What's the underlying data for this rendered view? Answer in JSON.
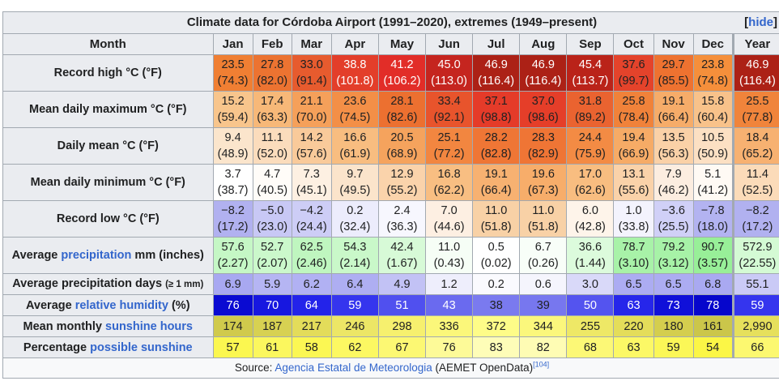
{
  "title": "Climate data for Córdoba Airport (1991–2020), extremes (1949–present)",
  "hide_label": "hide",
  "header": {
    "month_label": "Month",
    "months": [
      "Jan",
      "Feb",
      "Mar",
      "Apr",
      "May",
      "Jun",
      "Jul",
      "Aug",
      "Sep",
      "Oct",
      "Nov",
      "Dec"
    ],
    "year_label": "Year"
  },
  "rows": [
    {
      "id": "record-high",
      "label_parts": [
        {
          "text": "Record high °C (°F)",
          "link": false
        }
      ],
      "values": [
        "23.5",
        "27.8",
        "33.0",
        "38.8",
        "41.2",
        "45.0",
        "46.9",
        "46.9",
        "45.4",
        "37.6",
        "29.7",
        "23.8"
      ],
      "sub": [
        "(74.3)",
        "(82.0)",
        "(91.4)",
        "(101.8)",
        "(106.2)",
        "(113.0)",
        "(116.4)",
        "(116.4)",
        "(113.7)",
        "(99.7)",
        "(85.5)",
        "(74.8)"
      ],
      "year": "46.9",
      "year_sub": "(116.4)",
      "colors": [
        "#f07f33",
        "#ec7331",
        "#e75b2e",
        "#e33e2a",
        "#e22d28",
        "#c5251f",
        "#ac2116",
        "#ac2116",
        "#ba2319",
        "#e4432b",
        "#ee7230",
        "#f58f3b"
      ],
      "text_colors": [
        "#202122",
        "#202122",
        "#202122",
        "#ffffff",
        "#ffffff",
        "#ffffff",
        "#ffffff",
        "#ffffff",
        "#ffffff",
        "#202122",
        "#202122",
        "#202122"
      ],
      "year_color": "#ac2116",
      "year_text": "#ffffff"
    },
    {
      "id": "mean-max",
      "label_parts": [
        {
          "text": "Mean daily maximum °C (°F)",
          "link": false
        }
      ],
      "values": [
        "15.2",
        "17.4",
        "21.1",
        "23.6",
        "28.1",
        "33.4",
        "37.1",
        "37.0",
        "31.8",
        "25.8",
        "19.1",
        "15.8"
      ],
      "sub": [
        "(59.4)",
        "(63.3)",
        "(70.0)",
        "(74.5)",
        "(82.6)",
        "(92.1)",
        "(98.8)",
        "(98.6)",
        "(89.2)",
        "(78.4)",
        "(66.4)",
        "(60.4)"
      ],
      "year": "25.5",
      "year_sub": "(77.8)",
      "colors": [
        "#f8c58c",
        "#f7b878",
        "#f5a05a",
        "#f38f47",
        "#ec7030",
        "#e8542c",
        "#e53b29",
        "#e53e29",
        "#ea6330",
        "#f0823a",
        "#f6ac69",
        "#f8c28a"
      ],
      "text_colors": [
        "#202122",
        "#202122",
        "#202122",
        "#202122",
        "#202122",
        "#202122",
        "#202122",
        "#202122",
        "#202122",
        "#202122",
        "#202122",
        "#202122"
      ],
      "year_color": "#f0843b",
      "year_text": "#202122"
    },
    {
      "id": "daily-mean",
      "label_parts": [
        {
          "text": "Daily mean °C (°F)",
          "link": false
        }
      ],
      "values": [
        "9.4",
        "11.1",
        "14.2",
        "16.6",
        "20.5",
        "25.1",
        "28.2",
        "28.3",
        "24.4",
        "19.4",
        "13.5",
        "10.5"
      ],
      "sub": [
        "(48.9)",
        "(52.0)",
        "(57.6)",
        "(61.9)",
        "(68.9)",
        "(77.2)",
        "(82.8)",
        "(82.9)",
        "(75.9)",
        "(66.9)",
        "(56.3)",
        "(50.9)"
      ],
      "year": "18.4",
      "year_sub": "(65.2)",
      "colors": [
        "#fbe5cc",
        "#fbdcbc",
        "#f9ca9a",
        "#f8bd80",
        "#f5a35d",
        "#f28640",
        "#ef7635",
        "#ef7535",
        "#f38b44",
        "#f6ab66",
        "#fad1a7",
        "#fce0c3"
      ],
      "text_colors": [
        "#202122",
        "#202122",
        "#202122",
        "#202122",
        "#202122",
        "#202122",
        "#202122",
        "#202122",
        "#202122",
        "#202122",
        "#202122",
        "#202122"
      ],
      "year_color": "#f7b171",
      "year_text": "#202122"
    },
    {
      "id": "mean-min",
      "label_parts": [
        {
          "text": "Mean daily minimum °C (°F)",
          "link": false
        }
      ],
      "values": [
        "3.7",
        "4.7",
        "7.3",
        "9.7",
        "12.9",
        "16.8",
        "19.1",
        "19.6",
        "17.0",
        "13.1",
        "7.9",
        "5.1"
      ],
      "sub": [
        "(38.7)",
        "(40.5)",
        "(45.1)",
        "(49.5)",
        "(55.2)",
        "(62.2)",
        "(66.4)",
        "(67.3)",
        "(62.6)",
        "(55.6)",
        "(46.2)",
        "(41.2)"
      ],
      "year": "11.4",
      "year_sub": "(52.5)",
      "colors": [
        "#ffffff",
        "#fffcf8",
        "#fdf0e2",
        "#fbe4cb",
        "#fad3ab",
        "#f8be82",
        "#f7b171",
        "#f7ad6a",
        "#f8bd80",
        "#fad2a9",
        "#fcede0",
        "#fffaf4"
      ],
      "text_colors": [
        "#202122",
        "#202122",
        "#202122",
        "#202122",
        "#202122",
        "#202122",
        "#202122",
        "#202122",
        "#202122",
        "#202122",
        "#202122",
        "#202122"
      ],
      "year_color": "#fbdbb9",
      "year_text": "#202122"
    },
    {
      "id": "record-low",
      "label_parts": [
        {
          "text": "Record low °C (°F)",
          "link": false
        }
      ],
      "values": [
        "−8.2",
        "−5.0",
        "−4.2",
        "0.2",
        "2.4",
        "7.0",
        "11.0",
        "11.0",
        "6.0",
        "1.0",
        "−3.6",
        "−7.8"
      ],
      "sub": [
        "(17.2)",
        "(23.0)",
        "(24.4)",
        "(32.4)",
        "(36.3)",
        "(44.6)",
        "(51.8)",
        "(51.8)",
        "(42.8)",
        "(33.8)",
        "(25.5)",
        "(18.0)"
      ],
      "year": "−8.2",
      "year_sub": "(17.2)",
      "colors": [
        "#b1b1f0",
        "#c8c8f5",
        "#cdcdf6",
        "#ececfc",
        "#f7f7fe",
        "#fdefe2",
        "#f8d1a6",
        "#f8d1a6",
        "#fef4ea",
        "#f3f3fd",
        "#d0d0f7",
        "#b3b3f1"
      ],
      "text_colors": [
        "#202122",
        "#202122",
        "#202122",
        "#202122",
        "#202122",
        "#202122",
        "#202122",
        "#202122",
        "#202122",
        "#202122",
        "#202122",
        "#202122"
      ],
      "year_color": "#b1b1f0",
      "year_text": "#202122"
    },
    {
      "id": "precipitation",
      "label_parts": [
        {
          "text": "Average ",
          "link": false
        },
        {
          "text": "precipitation",
          "link": true
        },
        {
          "text": " mm (inches)",
          "link": false
        }
      ],
      "values": [
        "57.6",
        "52.7",
        "62.5",
        "54.3",
        "42.4",
        "11.0",
        "0.5",
        "6.7",
        "36.6",
        "78.7",
        "79.2",
        "90.7"
      ],
      "sub": [
        "(2.27)",
        "(2.07)",
        "(2.46)",
        "(2.14)",
        "(1.67)",
        "(0.43)",
        "(0.02)",
        "(0.26)",
        "(1.44)",
        "(3.10)",
        "(3.12)",
        "(3.57)"
      ],
      "year": "572.9",
      "year_sub": "(22.55)",
      "colors": [
        "#c5f7c5",
        "#cbf8cb",
        "#bff6bf",
        "#c9f8c9",
        "#d7fad7",
        "#f6fef6",
        "#ffffff",
        "#f8fef8",
        "#dcfbdc",
        "#a8f2a8",
        "#a7f2a7",
        "#98ef98"
      ],
      "text_colors": [
        "#202122",
        "#202122",
        "#202122",
        "#202122",
        "#202122",
        "#202122",
        "#202122",
        "#202122",
        "#202122",
        "#202122",
        "#202122",
        "#202122"
      ],
      "year_color": "#d4fad4",
      "year_text": "#202122"
    },
    {
      "id": "precip-days",
      "label_parts": [
        {
          "text": "Average precipitation days ",
          "link": false
        },
        {
          "text": "(≥ 1 mm)",
          "link": false,
          "small": true
        }
      ],
      "values": [
        "6.9",
        "5.9",
        "6.2",
        "6.4",
        "4.9",
        "1.2",
        "0.2",
        "0.6",
        "3.0",
        "6.5",
        "6.5",
        "6.8"
      ],
      "sub": [],
      "year": "55.1",
      "year_sub": "",
      "colors": [
        "#a8a8f1",
        "#b5b5f3",
        "#b1b1f3",
        "#aeaef2",
        "#c2c2f5",
        "#eeeefc",
        "#fafafe",
        "#f5f5fd",
        "#d9d9f9",
        "#acacf2",
        "#acacf2",
        "#a9a9f1"
      ],
      "text_colors": [
        "#202122",
        "#202122",
        "#202122",
        "#202122",
        "#202122",
        "#202122",
        "#202122",
        "#202122",
        "#202122",
        "#202122",
        "#202122",
        "#202122"
      ],
      "year_color": "#cacaf6",
      "year_text": "#202122"
    },
    {
      "id": "humidity",
      "label_parts": [
        {
          "text": "Average ",
          "link": false
        },
        {
          "text": "relative humidity",
          "link": true
        },
        {
          "text": " (%)",
          "link": false
        }
      ],
      "values": [
        "76",
        "70",
        "64",
        "59",
        "51",
        "43",
        "38",
        "39",
        "50",
        "63",
        "73",
        "78"
      ],
      "sub": [],
      "year": "59",
      "year_sub": "",
      "colors": [
        "#0a0ad2",
        "#1717e0",
        "#2323ea",
        "#3535ee",
        "#5050ef",
        "#6a6aef",
        "#7a7aef",
        "#7777ef",
        "#5454ef",
        "#2626ea",
        "#1010d9",
        "#0606cc"
      ],
      "text_colors": [
        "#ffffff",
        "#ffffff",
        "#ffffff",
        "#ffffff",
        "#ffffff",
        "#ffffff",
        "#202122",
        "#202122",
        "#ffffff",
        "#ffffff",
        "#ffffff",
        "#ffffff"
      ],
      "year_color": "#3535ee",
      "year_text": "#ffffff"
    },
    {
      "id": "sunshine-hours",
      "label_parts": [
        {
          "text": "Mean monthly ",
          "link": false
        },
        {
          "text": "sunshine hours",
          "link": true
        }
      ],
      "values": [
        "174",
        "187",
        "217",
        "246",
        "298",
        "336",
        "372",
        "344",
        "255",
        "220",
        "180",
        "161"
      ],
      "sub": [],
      "year": "2,990",
      "year_sub": "",
      "colors": [
        "#d0ca4c",
        "#d7d152",
        "#e3dc5a",
        "#ece666",
        "#f6f06e",
        "#fbf77a",
        "#fefc88",
        "#fbf77c",
        "#eee866",
        "#e4dd5a",
        "#d4ce4e",
        "#cbc64a"
      ],
      "text_colors": [
        "#202122",
        "#202122",
        "#202122",
        "#202122",
        "#202122",
        "#202122",
        "#202122",
        "#202122",
        "#202122",
        "#202122",
        "#202122",
        "#202122"
      ],
      "year_color": "#e6e05c",
      "year_text": "#202122"
    },
    {
      "id": "possible-sunshine",
      "label_parts": [
        {
          "text": "Percentage ",
          "link": false
        },
        {
          "text": "possible sunshine",
          "link": true
        }
      ],
      "values": [
        "57",
        "61",
        "58",
        "62",
        "67",
        "76",
        "83",
        "82",
        "68",
        "63",
        "59",
        "54"
      ],
      "sub": [],
      "year": "66",
      "year_sub": "",
      "colors": [
        "#fbf750",
        "#fbf75e",
        "#fbf753",
        "#fcf862",
        "#fcf873",
        "#fdfa98",
        "#fefdb8",
        "#fefcb4",
        "#fcf876",
        "#fcf866",
        "#fbf757",
        "#fbf646"
      ],
      "text_colors": [
        "#202122",
        "#202122",
        "#202122",
        "#202122",
        "#202122",
        "#202122",
        "#202122",
        "#202122",
        "#202122",
        "#202122",
        "#202122",
        "#202122"
      ],
      "year_color": "#fcf870",
      "year_text": "#202122"
    }
  ],
  "source": {
    "prefix": "Source: ",
    "link_text": "Agencia Estatal de Meteorologia",
    "suffix": " (AEMET OpenData)",
    "ref": "[104]"
  }
}
